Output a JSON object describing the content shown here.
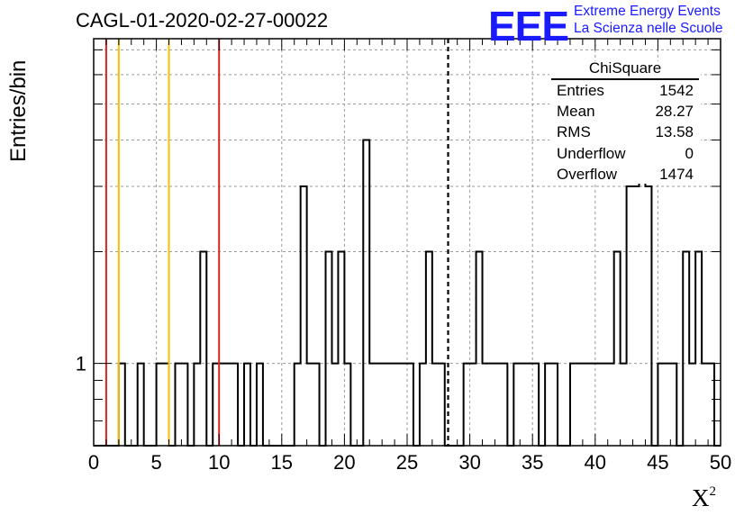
{
  "header": {
    "title": "CAGL-01-2020-02-27-00022",
    "logo": "EEE",
    "logo_line1": "Extreme Energy Events",
    "logo_line2": "La Scienza nelle Scuole"
  },
  "stats_box": {
    "title": "ChiSquare",
    "rows": [
      {
        "label": "Entries",
        "value": "1542"
      },
      {
        "label": "Mean",
        "value": "28.27"
      },
      {
        "label": "RMS",
        "value": "13.58"
      },
      {
        "label": "Underflow",
        "value": "0"
      },
      {
        "label": "Overflow",
        "value": "1474"
      }
    ]
  },
  "chart_data": {
    "type": "bar",
    "histogram": "step",
    "title": "CAGL-01-2020-02-27-00022",
    "xlabel": "X",
    "xlabel_superscript": "2",
    "ylabel": "Entries/bin",
    "xlim": [
      0,
      50
    ],
    "ylim": [
      0.6,
      7.5
    ],
    "yscale": "log",
    "grid": true,
    "bin_width": 0.5,
    "x_ticks": [
      "0",
      "5",
      "10",
      "15",
      "20",
      "25",
      "30",
      "35",
      "40",
      "45",
      "50"
    ],
    "y_ticks": [
      "1"
    ],
    "counts": [
      0,
      0,
      0,
      0,
      1,
      0,
      0,
      1,
      0,
      0,
      1,
      1,
      0,
      1,
      1,
      0,
      1,
      2,
      0,
      1,
      1,
      1,
      1,
      0,
      1,
      0,
      1,
      0,
      0,
      0,
      0,
      0,
      1,
      3,
      1,
      1,
      0,
      2,
      1,
      2,
      1,
      0,
      0,
      4,
      1,
      1,
      1,
      1,
      1,
      1,
      1,
      0,
      1,
      2,
      1,
      1,
      0,
      0,
      0,
      1,
      1,
      2,
      1,
      1,
      1,
      1,
      0,
      1,
      1,
      1,
      1,
      0,
      1,
      1,
      0,
      0,
      1,
      1,
      1,
      1,
      1,
      1,
      1,
      2,
      1,
      3,
      3,
      4,
      3,
      0,
      1,
      1,
      1,
      0,
      2,
      1,
      2,
      1,
      1,
      0
    ],
    "reference_lines": [
      {
        "x": 1,
        "color": "#dd2222"
      },
      {
        "x": 2,
        "color": "#f2c200"
      },
      {
        "x": 6,
        "color": "#f2c200"
      },
      {
        "x": 10,
        "color": "#dd2222"
      }
    ],
    "mean_line": {
      "x": 28.27,
      "style": "dashed",
      "color": "#000000"
    }
  }
}
